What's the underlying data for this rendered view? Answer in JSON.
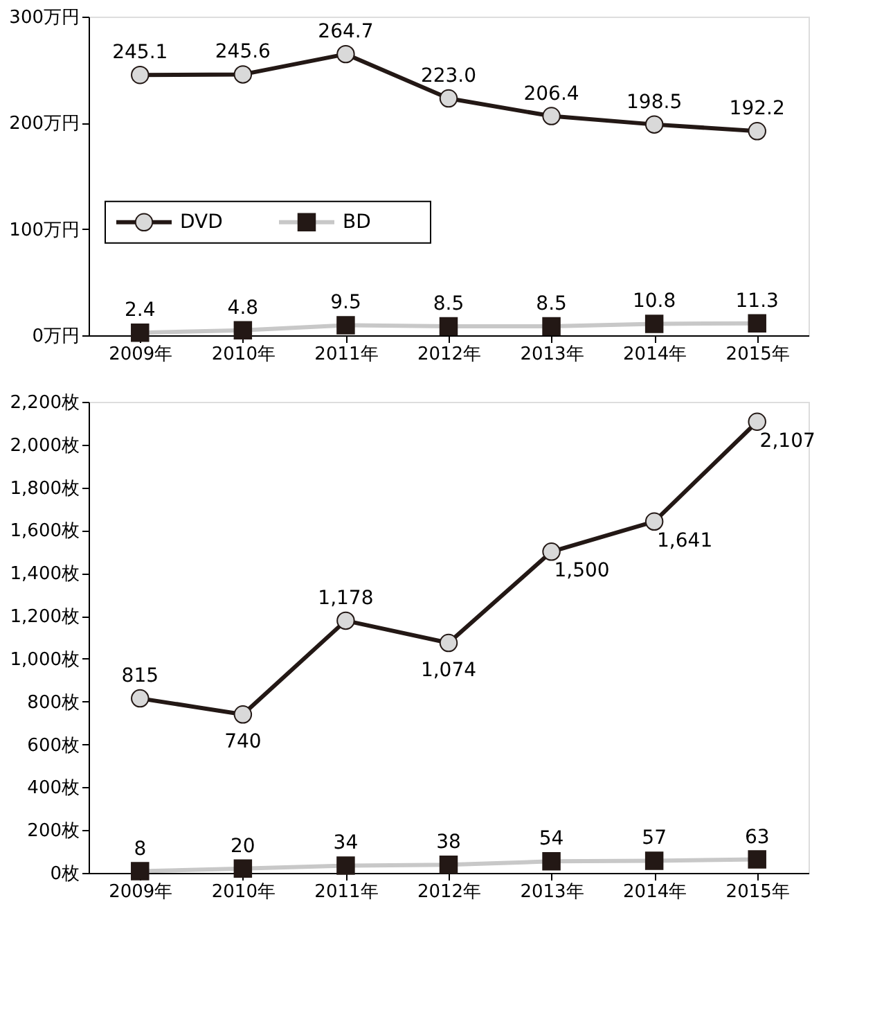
{
  "chart_data": [
    {
      "type": "line",
      "categories": [
        "2009年",
        "2010年",
        "2011年",
        "2012年",
        "2013年",
        "2014年",
        "2015年"
      ],
      "series": [
        {
          "name": "DVD",
          "color": "#231815",
          "marker": "circle",
          "values": [
            245.1,
            245.6,
            264.7,
            223.0,
            206.4,
            198.5,
            192.2
          ],
          "value_labels": [
            "245.1",
            "245.6",
            "264.7",
            "223.0",
            "206.4",
            "198.5",
            "192.2"
          ]
        },
        {
          "name": "BD",
          "color": "#c8c8c8",
          "marker": "square",
          "values": [
            2.4,
            4.8,
            9.5,
            8.5,
            8.5,
            10.8,
            11.3
          ],
          "value_labels": [
            "2.4",
            "4.8",
            "9.5",
            "8.5",
            "8.5",
            "10.8",
            "11.3"
          ]
        }
      ],
      "ylim": [
        0,
        300
      ],
      "yticks": [
        {
          "value": 0,
          "label": "0万円"
        },
        {
          "value": 100,
          "label": "100万円"
        },
        {
          "value": 200,
          "label": "200万円"
        },
        {
          "value": 300,
          "label": "300万円"
        }
      ],
      "grid": false,
      "legend": "left"
    },
    {
      "type": "line",
      "categories": [
        "2009年",
        "2010年",
        "2011年",
        "2012年",
        "2013年",
        "2014年",
        "2015年"
      ],
      "series": [
        {
          "color": "#231815",
          "marker": "circle",
          "values": [
            815,
            740,
            1178,
            1074,
            1500,
            1641,
            2107
          ],
          "value_labels": [
            "815",
            "740",
            "1,178",
            "1,074",
            "1,500",
            "1,641",
            "2,107"
          ]
        },
        {
          "color": "#c8c8c8",
          "marker": "square",
          "values": [
            8,
            20,
            34,
            38,
            54,
            57,
            63
          ],
          "value_labels": [
            "8",
            "20",
            "34",
            "38",
            "54",
            "57",
            "63"
          ]
        }
      ],
      "ylim": [
        0,
        2200
      ],
      "yticks": [
        {
          "value": 0,
          "label": "0枚"
        },
        {
          "value": 200,
          "label": "200枚"
        },
        {
          "value": 400,
          "label": "400枚"
        },
        {
          "value": 600,
          "label": "600枚"
        },
        {
          "value": 800,
          "label": "800枚"
        },
        {
          "value": 1000,
          "label": "1,000枚"
        },
        {
          "value": 1200,
          "label": "1,200枚"
        },
        {
          "value": 1400,
          "label": "1,400枚"
        },
        {
          "value": 1600,
          "label": "1,600枚"
        },
        {
          "value": 1800,
          "label": "1,800枚"
        },
        {
          "value": 2000,
          "label": "2,000枚"
        },
        {
          "value": 2200,
          "label": "2,200枚"
        }
      ],
      "grid": false
    }
  ]
}
